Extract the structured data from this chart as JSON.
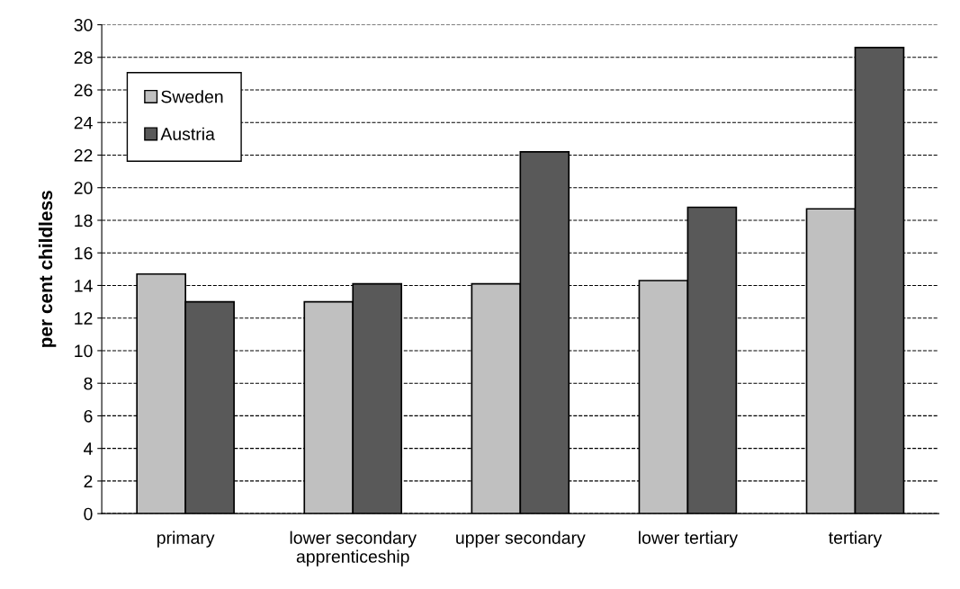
{
  "chart_data": {
    "type": "bar",
    "ylabel": "per cent childless",
    "categories": [
      "primary",
      "lower secondary\napprenticeship",
      "upper secondary",
      "lower tertiary",
      "tertiary"
    ],
    "series": [
      {
        "name": "Sweden",
        "color": "#c0c0c0",
        "values": [
          14.7,
          13.0,
          14.1,
          14.3,
          18.7
        ]
      },
      {
        "name": "Austria",
        "color": "#595959",
        "values": [
          13.0,
          14.1,
          22.2,
          18.8,
          28.6
        ]
      }
    ],
    "ylim": [
      0,
      30
    ],
    "yticks": [
      0,
      2,
      4,
      6,
      8,
      10,
      12,
      14,
      16,
      18,
      20,
      22,
      24,
      26,
      28,
      30
    ],
    "grid": "y",
    "legend": "top left"
  }
}
